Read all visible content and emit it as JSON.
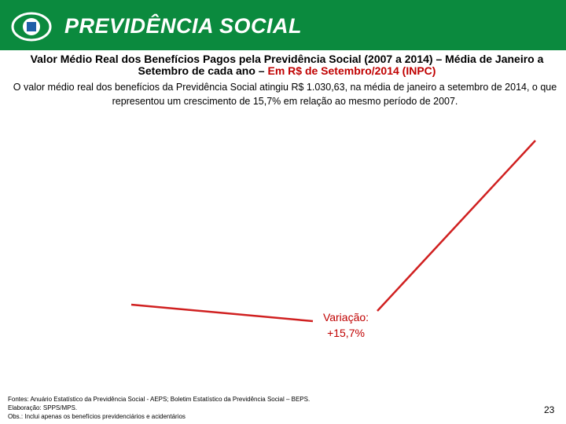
{
  "header": {
    "title": "PREVIDÊNCIA SOCIAL"
  },
  "slide": {
    "title": "Valor Médio Real dos Benefícios Pagos pela Previdência Social (2007 a 2014) – Média de Janeiro a Setembro de cada ano – ",
    "title_highlight": "Em R$ de Setembro/2014 (INPC)",
    "summary": "O valor médio real dos benefícios da Previdência Social atingiu R$ 1.030,63, na média de janeiro a setembro de 2014, o que representou um crescimento de 15,7% em relação ao mesmo período de 2007.",
    "annotation": {
      "label": "Variação:",
      "value": "+15,7%"
    },
    "footer": [
      "Fontes: Anuário Estatístico da Previdência Social - AEPS; Boletim Estatístico da Previdência Social – BEPS.",
      "Elaboração: SPPS/MPS.",
      "Obs.: Inclui apenas os benefícios previdenciários e acidentários"
    ],
    "page_number": "23"
  }
}
